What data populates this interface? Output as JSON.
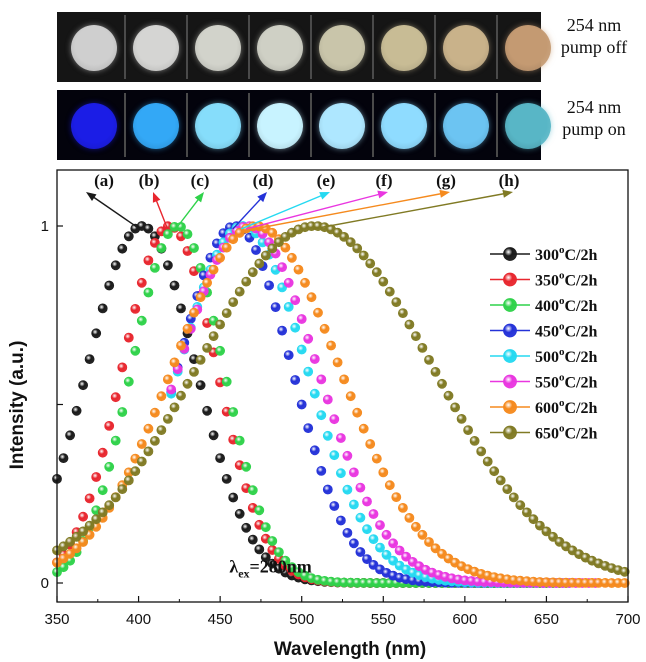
{
  "photos": {
    "pump_off_label": [
      "254 nm",
      "pump off"
    ],
    "pump_on_label": [
      "254 nm",
      "pump on"
    ],
    "pump_off_colors": [
      "#cfcfcf",
      "#d5d5d3",
      "#d2d3cb",
      "#cfd0c5",
      "#c9c5aa",
      "#c8bc95",
      "#c9b28a",
      "#c49a72"
    ],
    "pump_on_colors": [
      "#1b1de6",
      "#33a8f6",
      "#86ddfb",
      "#c8f3ff",
      "#aee7ff",
      "#8fdcff",
      "#6cc4f2",
      "#58b6c6"
    ]
  },
  "chart_data": {
    "type": "scatter",
    "xlabel": "Wavelength (nm)",
    "ylabel": "Intensity (a.u.)",
    "xlim": [
      350,
      700
    ],
    "ylim": [
      0,
      1
    ],
    "x_ticks": [
      350,
      400,
      450,
      500,
      550,
      600,
      650,
      700
    ],
    "y_ticks": [
      {
        "value": 0,
        "label": "0"
      },
      {
        "value": 0.5,
        "label": ""
      },
      {
        "value": 1,
        "label": "1"
      }
    ],
    "grid": false,
    "legend_position": "right",
    "annotation": {
      "text": "λex=280nm",
      "x": 482,
      "y": 0.04
    },
    "series": [
      {
        "name": "300°C/2h",
        "peak_label": "(a)",
        "color": "#1a1a1a",
        "peak_x": 402,
        "fwhm": 78,
        "x_start": 350,
        "x_end": 620,
        "step": 4
      },
      {
        "name": "350°C/2h",
        "peak_label": "(b)",
        "color": "#e8262e",
        "peak_x": 419,
        "fwhm": 68,
        "x_start": 350,
        "x_end": 665,
        "step": 4
      },
      {
        "name": "400°C/2h",
        "peak_label": "(c)",
        "color": "#2fd24a",
        "peak_x": 424,
        "fwhm": 66,
        "x_start": 350,
        "x_end": 665,
        "step": 4
      },
      {
        "name": "450°C/2h",
        "peak_label": "(d)",
        "color": "#2432d8",
        "peak_x": 459,
        "fwhm": 82,
        "x_start": 420,
        "x_end": 650,
        "step": 4
      },
      {
        "name": "500°C/2h",
        "peak_label": "(e)",
        "color": "#25d9f1",
        "peak_x": 464,
        "fwhm": 92,
        "x_start": 420,
        "x_end": 665,
        "step": 4
      },
      {
        "name": "550°C/2h",
        "peak_label": "(f)",
        "color": "#e936e0",
        "peak_x": 467,
        "fwhm": 100,
        "x_start": 420,
        "x_end": 680,
        "step": 4
      },
      {
        "name": "600°C/2h",
        "peak_label": "(g)",
        "color": "#f58a1e",
        "peak_x": 472,
        "fwhm": 120,
        "x_start": 350,
        "x_end": 700,
        "step": 4
      },
      {
        "name": "650°C/2h",
        "peak_label": "(h)",
        "color": "#807a24",
        "peak_x": 508,
        "fwhm": 170,
        "x_start": 350,
        "x_end": 700,
        "step": 4
      }
    ]
  }
}
